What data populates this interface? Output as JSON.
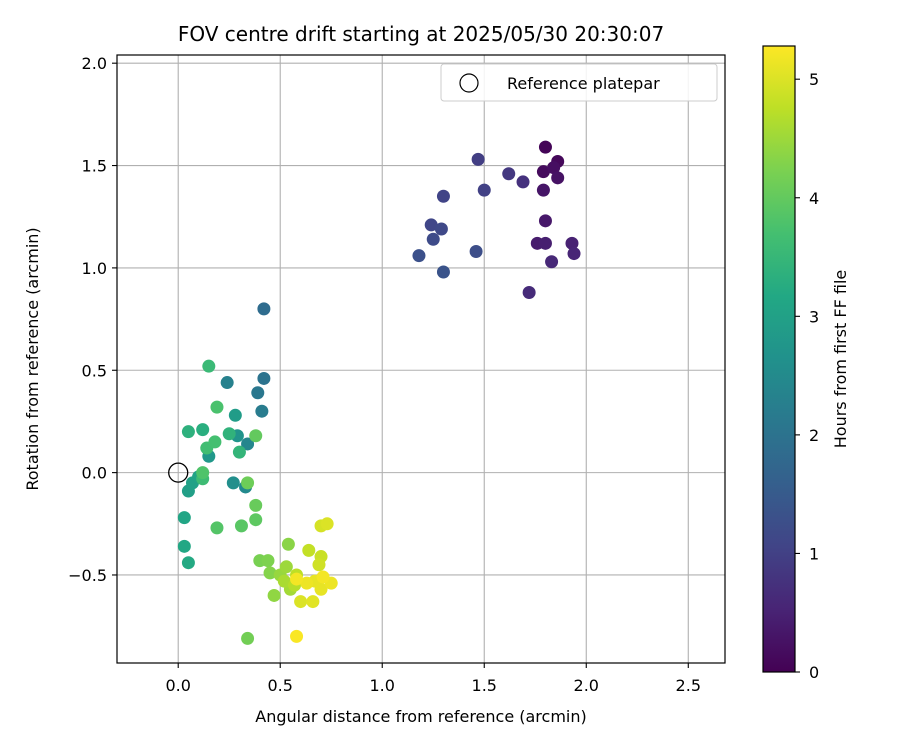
{
  "chart_data": {
    "type": "scatter",
    "title": "FOV centre drift starting at 2025/05/30 20:30:07",
    "xlabel": "Angular distance from reference (arcmin)",
    "ylabel": "Rotation from reference (arcmin)",
    "xlim": [
      -0.3,
      2.68
    ],
    "ylim": [
      -0.93,
      2.04
    ],
    "x_ticks": [
      0.0,
      0.5,
      1.0,
      1.5,
      2.0,
      2.5
    ],
    "x_tick_labels": [
      "0.0",
      "0.5",
      "1.0",
      "1.5",
      "2.0",
      "2.5"
    ],
    "y_ticks": [
      -0.5,
      0.0,
      0.5,
      1.0,
      1.5,
      2.0
    ],
    "y_tick_labels": [
      "−0.5",
      "0.0",
      "0.5",
      "1.0",
      "1.5",
      "2.0"
    ],
    "grid": true,
    "legend": {
      "position": "top-right",
      "entries": [
        "Reference platepar"
      ]
    },
    "reference_point": {
      "x": 0.0,
      "y": 0.0,
      "label": "Reference platepar"
    },
    "colorbar": {
      "label": "Hours from first FF file",
      "colormap": "viridis",
      "range": [
        0,
        5.28
      ],
      "ticks": [
        0,
        1,
        2,
        3,
        4,
        5
      ],
      "tick_labels": [
        "0",
        "1",
        "2",
        "3",
        "4",
        "5"
      ]
    },
    "points": [
      {
        "x": 1.8,
        "y": 1.59,
        "c": 0.05
      },
      {
        "x": 1.86,
        "y": 1.52,
        "c": 0.1
      },
      {
        "x": 1.79,
        "y": 1.47,
        "c": 0.15
      },
      {
        "x": 1.84,
        "y": 1.49,
        "c": 0.2
      },
      {
        "x": 1.86,
        "y": 1.44,
        "c": 0.25
      },
      {
        "x": 1.79,
        "y": 1.38,
        "c": 0.3
      },
      {
        "x": 1.8,
        "y": 1.23,
        "c": 0.35
      },
      {
        "x": 1.76,
        "y": 1.12,
        "c": 0.4
      },
      {
        "x": 1.8,
        "y": 1.12,
        "c": 0.45
      },
      {
        "x": 1.93,
        "y": 1.12,
        "c": 0.5
      },
      {
        "x": 1.94,
        "y": 1.07,
        "c": 0.55
      },
      {
        "x": 1.83,
        "y": 1.03,
        "c": 0.6
      },
      {
        "x": 1.72,
        "y": 0.88,
        "c": 0.65
      },
      {
        "x": 1.69,
        "y": 1.42,
        "c": 0.75
      },
      {
        "x": 1.62,
        "y": 1.46,
        "c": 0.85
      },
      {
        "x": 1.47,
        "y": 1.53,
        "c": 0.95
      },
      {
        "x": 1.5,
        "y": 1.38,
        "c": 1.0
      },
      {
        "x": 1.3,
        "y": 1.35,
        "c": 1.05
      },
      {
        "x": 1.24,
        "y": 1.21,
        "c": 1.1
      },
      {
        "x": 1.29,
        "y": 1.19,
        "c": 1.15
      },
      {
        "x": 1.25,
        "y": 1.14,
        "c": 1.2
      },
      {
        "x": 1.46,
        "y": 1.08,
        "c": 1.25
      },
      {
        "x": 1.18,
        "y": 1.06,
        "c": 1.3
      },
      {
        "x": 1.3,
        "y": 0.98,
        "c": 1.35
      },
      {
        "x": 0.42,
        "y": 0.8,
        "c": 1.85
      },
      {
        "x": 0.42,
        "y": 0.46,
        "c": 2.0
      },
      {
        "x": 0.39,
        "y": 0.39,
        "c": 2.1
      },
      {
        "x": 0.41,
        "y": 0.3,
        "c": 2.2
      },
      {
        "x": 0.24,
        "y": 0.44,
        "c": 2.3
      },
      {
        "x": 0.34,
        "y": 0.14,
        "c": 2.4
      },
      {
        "x": 0.33,
        "y": -0.07,
        "c": 2.5
      },
      {
        "x": 0.27,
        "y": -0.05,
        "c": 2.6
      },
      {
        "x": 0.29,
        "y": 0.18,
        "c": 2.7
      },
      {
        "x": 0.15,
        "y": 0.08,
        "c": 2.8
      },
      {
        "x": 0.28,
        "y": 0.28,
        "c": 2.9
      },
      {
        "x": 0.05,
        "y": -0.09,
        "c": 2.95
      },
      {
        "x": 0.07,
        "y": -0.05,
        "c": 3.0
      },
      {
        "x": 0.1,
        "y": -0.02,
        "c": 3.05
      },
      {
        "x": 0.03,
        "y": -0.22,
        "c": 3.1
      },
      {
        "x": 0.03,
        "y": -0.36,
        "c": 3.15
      },
      {
        "x": 0.05,
        "y": -0.44,
        "c": 3.2
      },
      {
        "x": 0.12,
        "y": 0.21,
        "c": 3.3
      },
      {
        "x": 0.05,
        "y": 0.2,
        "c": 3.35
      },
      {
        "x": 0.25,
        "y": 0.19,
        "c": 3.4
      },
      {
        "x": 0.3,
        "y": 0.1,
        "c": 3.45
      },
      {
        "x": 0.15,
        "y": 0.52,
        "c": 3.55
      },
      {
        "x": 0.12,
        "y": -0.03,
        "c": 3.6
      },
      {
        "x": 0.14,
        "y": 0.12,
        "c": 3.65
      },
      {
        "x": 0.18,
        "y": 0.15,
        "c": 3.7
      },
      {
        "x": 0.19,
        "y": 0.32,
        "c": 3.75
      },
      {
        "x": 0.12,
        "y": 0.0,
        "c": 3.8
      },
      {
        "x": 0.19,
        "y": -0.27,
        "c": 3.85
      },
      {
        "x": 0.31,
        "y": -0.26,
        "c": 3.9
      },
      {
        "x": 0.38,
        "y": -0.23,
        "c": 3.95
      },
      {
        "x": 0.38,
        "y": 0.18,
        "c": 4.0
      },
      {
        "x": 0.38,
        "y": -0.16,
        "c": 4.05
      },
      {
        "x": 0.34,
        "y": -0.05,
        "c": 4.1
      },
      {
        "x": 0.34,
        "y": -0.81,
        "c": 4.15
      },
      {
        "x": 0.4,
        "y": -0.43,
        "c": 4.2
      },
      {
        "x": 0.44,
        "y": -0.43,
        "c": 4.25
      },
      {
        "x": 0.45,
        "y": -0.49,
        "c": 4.3
      },
      {
        "x": 0.54,
        "y": -0.35,
        "c": 4.35
      },
      {
        "x": 0.47,
        "y": -0.6,
        "c": 4.4
      },
      {
        "x": 0.5,
        "y": -0.5,
        "c": 4.45
      },
      {
        "x": 0.53,
        "y": -0.46,
        "c": 4.5
      },
      {
        "x": 0.55,
        "y": -0.57,
        "c": 4.55
      },
      {
        "x": 0.52,
        "y": -0.53,
        "c": 4.6
      },
      {
        "x": 0.57,
        "y": -0.55,
        "c": 4.7
      },
      {
        "x": 0.58,
        "y": -0.5,
        "c": 4.75
      },
      {
        "x": 0.64,
        "y": -0.38,
        "c": 4.8
      },
      {
        "x": 0.7,
        "y": -0.41,
        "c": 4.85
      },
      {
        "x": 0.69,
        "y": -0.45,
        "c": 4.9
      },
      {
        "x": 0.7,
        "y": -0.26,
        "c": 4.95
      },
      {
        "x": 0.73,
        "y": -0.25,
        "c": 5.0
      },
      {
        "x": 0.6,
        "y": -0.63,
        "c": 5.0
      },
      {
        "x": 0.66,
        "y": -0.63,
        "c": 5.05
      },
      {
        "x": 0.7,
        "y": -0.57,
        "c": 5.1
      },
      {
        "x": 0.67,
        "y": -0.53,
        "c": 5.1
      },
      {
        "x": 0.75,
        "y": -0.54,
        "c": 5.15
      },
      {
        "x": 0.63,
        "y": -0.54,
        "c": 5.15
      },
      {
        "x": 0.71,
        "y": -0.51,
        "c": 5.2
      },
      {
        "x": 0.58,
        "y": -0.52,
        "c": 5.2
      },
      {
        "x": 0.58,
        "y": -0.8,
        "c": 5.25
      }
    ]
  }
}
